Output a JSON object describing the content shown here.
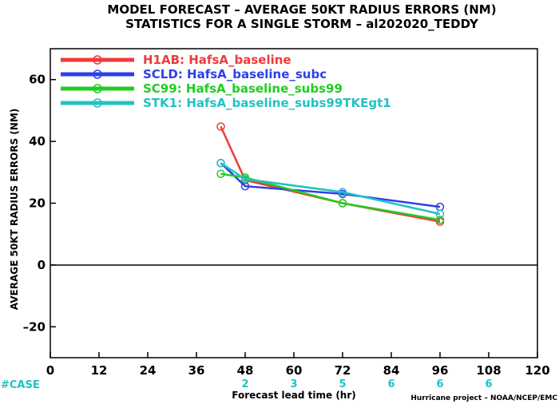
{
  "chart_data": {
    "type": "line",
    "title": "MODEL FORECAST – AVERAGE 50KT RADIUS ERRORS (NM)",
    "subtitle": "STATISTICS FOR A SINGLE STORM – al202020_TEDDY",
    "xlabel": "Forecast lead time (hr)",
    "ylabel": "AVERAGE 50KT RADIUS ERRORS (NM)",
    "xlim": [
      0,
      120
    ],
    "ylim": [
      -30,
      70
    ],
    "xticks": [
      0,
      12,
      24,
      36,
      48,
      60,
      72,
      84,
      96,
      108,
      120
    ],
    "yticks": [
      -20,
      0,
      20,
      40,
      60
    ],
    "zero_line": true,
    "legend_position": "top-left",
    "series": [
      {
        "name": "H1AB: HafsA_baseline",
        "color": "#ee3b3b",
        "x": [
          42,
          48,
          72,
          96
        ],
        "y": [
          44.8,
          27.5,
          20.0,
          14.0
        ]
      },
      {
        "name": "SCLD: HafsA_baseline_subc",
        "color": "#2e3fe8",
        "x": [
          42,
          48,
          72,
          96
        ],
        "y": [
          33.0,
          25.5,
          23.0,
          18.8
        ]
      },
      {
        "name": "SC99: HafsA_baseline_subs99",
        "color": "#22cc22",
        "x": [
          42,
          48,
          72,
          96
        ],
        "y": [
          29.5,
          28.3,
          20.0,
          14.6
        ]
      },
      {
        "name": "STK1: HafsA_baseline_subs99TKEgt1",
        "color": "#22c2c2",
        "x": [
          42,
          48,
          72,
          96
        ],
        "y": [
          33.0,
          27.8,
          23.6,
          16.5
        ]
      }
    ],
    "cases": {
      "label": "#CASE",
      "color": "#22c2c2",
      "x": [
        48,
        60,
        72,
        84,
        96,
        108
      ],
      "counts": [
        "2",
        "3",
        "5",
        "6",
        "6",
        "6"
      ]
    },
    "credit": "Hurricane project – NOAA/NCEP/EMC"
  }
}
